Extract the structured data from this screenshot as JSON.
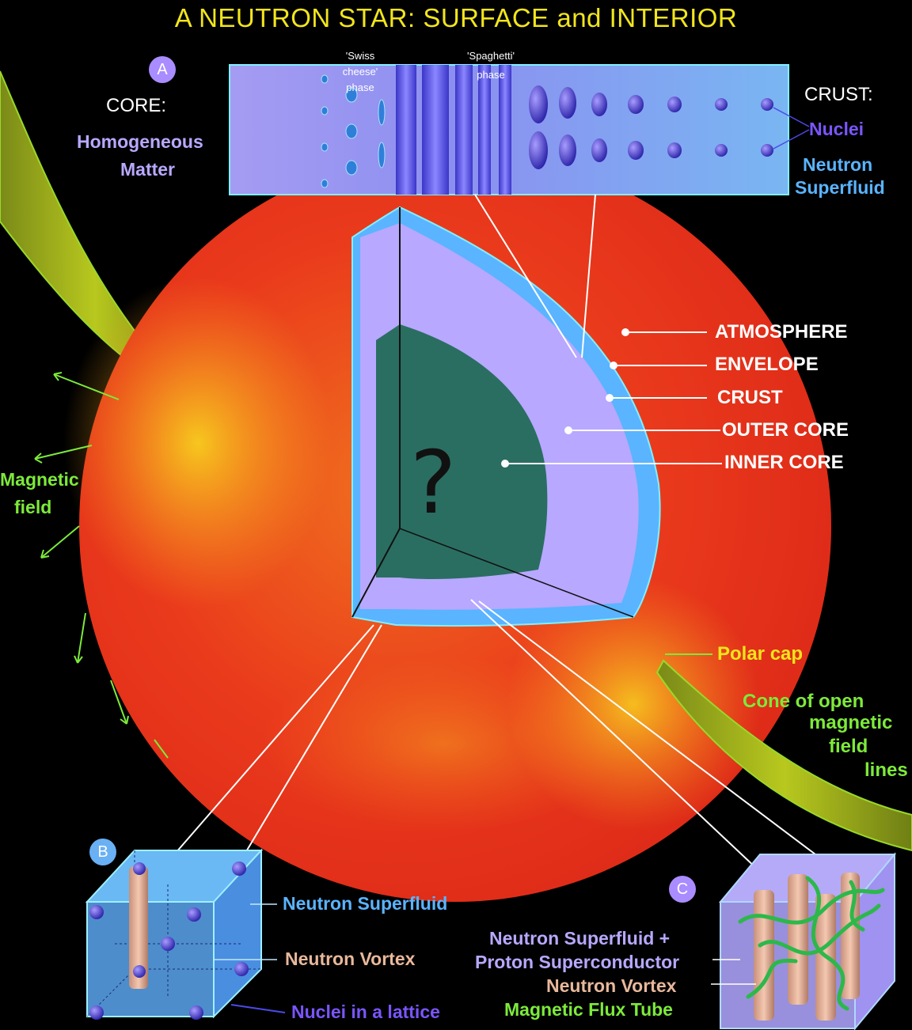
{
  "title": "A NEUTRON STAR:  SURFACE and INTERIOR",
  "inset_a": {
    "badge": "A",
    "core_heading": "CORE:",
    "core_sub_1": "Homogeneous",
    "core_sub_2": "Matter",
    "swiss_1": "'Swiss",
    "swiss_2": "cheese'",
    "swiss_3": "phase",
    "spaghetti_1": "'Spaghetti'",
    "spaghetti_2": "phase",
    "crust_heading": "CRUST:",
    "nuclei": "Nuclei",
    "superfluid_1": "Neutron",
    "superfluid_2": "Superfluid"
  },
  "layers": {
    "atmosphere": "ATMOSPHERE",
    "envelope": "ENVELOPE",
    "crust": "CRUST",
    "outer_core": "OUTER CORE",
    "inner_core": "INNER CORE",
    "unknown": "?"
  },
  "magnetic": {
    "field_1": "Magnetic",
    "field_2": "field",
    "polar_cap": "Polar cap",
    "cone_1": "Cone of open",
    "cone_2": "magnetic",
    "cone_3": "field",
    "cone_4": "lines"
  },
  "inset_b": {
    "badge": "B",
    "superfluid": "Neutron Superfluid",
    "vortex": "Neutron Vortex",
    "lattice": "Nuclei in a lattice"
  },
  "inset_c": {
    "badge": "C",
    "line1": "Neutron Superfluid  +",
    "line2": "Proton Superconductor",
    "vortex": "Neutron Vortex",
    "flux": "Magnetic Flux Tube"
  },
  "colors": {
    "title": "#f2e51c",
    "star_outer": "#e8321c",
    "star_inner": "#f7d21e",
    "crust_blue": "#5ab4ff",
    "outer_core": "#b8a8ff",
    "inner_core": "#2a6e62",
    "field_green": "#7dea3a"
  }
}
